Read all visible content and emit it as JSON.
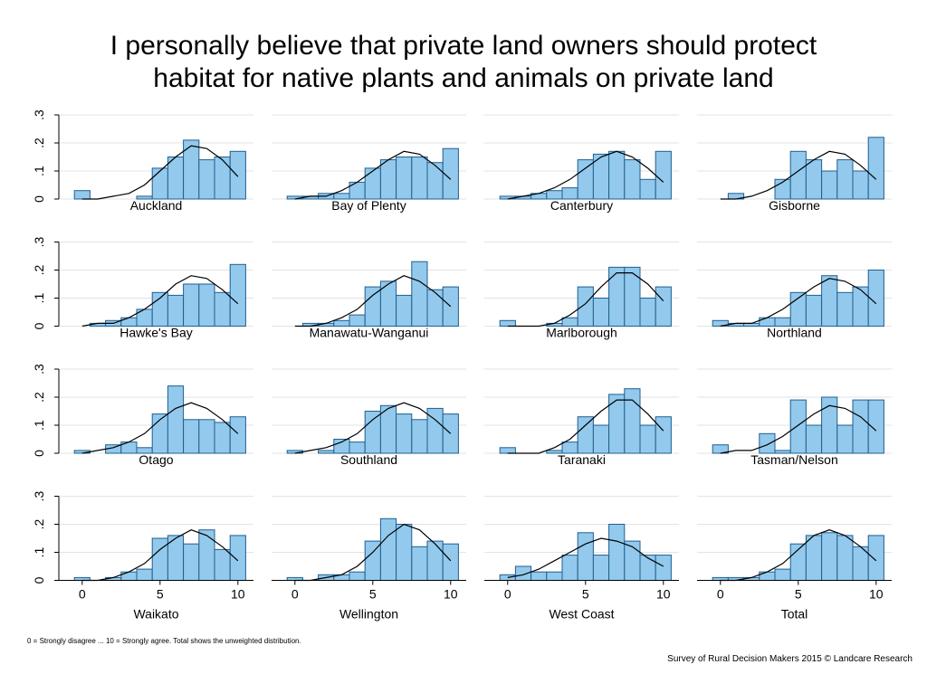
{
  "title": [
    "I personally believe that private land owners should protect",
    "habitat for native plants and animals on private land"
  ],
  "note": "0 = Strongly disagree ... 10 = Strongly agree. Total shows the unweighted distribution.",
  "source": "Survey of Rural Decision Makers 2015 © Landcare Research",
  "axes": {
    "xlim": [
      -1.5,
      11
    ],
    "xticks": [
      0,
      5,
      10
    ],
    "ylim": [
      0,
      0.3
    ],
    "yticks": [
      0,
      {
        "value": 0.1,
        "label": ".1"
      },
      {
        "value": 0.2,
        "label": ".2"
      },
      {
        "value": 0.3,
        "label": ".3"
      }
    ],
    "grid": true,
    "bar_color": "#93c9ec",
    "edge_color": "#1f5f8f",
    "curve_color": "#000000"
  },
  "curve_x": [
    0,
    1,
    2,
    3,
    4,
    5,
    6,
    7,
    8,
    9,
    10
  ],
  "chart_data": [
    {
      "type": "histogram",
      "title": "Auckland",
      "bins": [
        -0.5,
        0.5,
        1.5,
        2.5,
        3.5,
        4.5,
        5.5,
        6.5,
        7.5,
        8.5,
        9.5,
        10.5
      ],
      "values": [
        0.03,
        0,
        0,
        0,
        0.01,
        0.11,
        0.15,
        0.21,
        0.14,
        0.15,
        0.17
      ],
      "curve": [
        0,
        0,
        0.01,
        0.02,
        0.05,
        0.1,
        0.15,
        0.19,
        0.18,
        0.14,
        0.08
      ]
    },
    {
      "type": "histogram",
      "title": "Bay of Plenty",
      "bins": [
        -0.5,
        0.5,
        1.5,
        2.5,
        3.5,
        4.5,
        5.5,
        6.5,
        7.5,
        8.5,
        9.5,
        10.5
      ],
      "values": [
        0.01,
        0.01,
        0.02,
        0.02,
        0.06,
        0.11,
        0.14,
        0.15,
        0.15,
        0.13,
        0.18
      ],
      "curve": [
        0,
        0.01,
        0.01,
        0.03,
        0.06,
        0.1,
        0.14,
        0.17,
        0.16,
        0.12,
        0.07
      ]
    },
    {
      "type": "histogram",
      "title": "Canterbury",
      "bins": [
        -0.5,
        0.5,
        1.5,
        2.5,
        3.5,
        4.5,
        5.5,
        6.5,
        7.5,
        8.5,
        9.5,
        10.5
      ],
      "values": [
        0.01,
        0.01,
        0.02,
        0.03,
        0.04,
        0.14,
        0.16,
        0.17,
        0.14,
        0.07,
        0.17
      ],
      "curve": [
        0,
        0.01,
        0.02,
        0.04,
        0.07,
        0.11,
        0.15,
        0.17,
        0.15,
        0.11,
        0.06
      ]
    },
    {
      "type": "histogram",
      "title": "Gisborne",
      "bins": [
        -0.5,
        0.5,
        1.5,
        2.5,
        3.5,
        4.5,
        5.5,
        6.5,
        7.5,
        8.5,
        9.5,
        10.5
      ],
      "values": [
        0,
        0.02,
        0,
        0,
        0.07,
        0.17,
        0.14,
        0.1,
        0.14,
        0.1,
        0.22
      ],
      "curve": [
        0,
        0,
        0.01,
        0.03,
        0.06,
        0.1,
        0.14,
        0.17,
        0.16,
        0.12,
        0.07
      ]
    },
    {
      "type": "histogram",
      "title": "Hawke's Bay",
      "bins": [
        -0.5,
        0.5,
        1.5,
        2.5,
        3.5,
        4.5,
        5.5,
        6.5,
        7.5,
        8.5,
        9.5,
        10.5
      ],
      "values": [
        0,
        0.01,
        0.02,
        0.03,
        0.06,
        0.12,
        0.11,
        0.15,
        0.15,
        0.12,
        0.22
      ],
      "curve": [
        0,
        0.01,
        0.01,
        0.03,
        0.06,
        0.1,
        0.15,
        0.18,
        0.17,
        0.13,
        0.08
      ]
    },
    {
      "type": "histogram",
      "title": "Manawatu-Wanganui",
      "bins": [
        -0.5,
        0.5,
        1.5,
        2.5,
        3.5,
        4.5,
        5.5,
        6.5,
        7.5,
        8.5,
        9.5,
        10.5
      ],
      "values": [
        0,
        0.01,
        0.01,
        0.02,
        0.04,
        0.14,
        0.16,
        0.11,
        0.23,
        0.13,
        0.14
      ],
      "curve": [
        0,
        0,
        0.01,
        0.03,
        0.06,
        0.11,
        0.15,
        0.18,
        0.16,
        0.12,
        0.07
      ]
    },
    {
      "type": "histogram",
      "title": "Marlborough",
      "bins": [
        -0.5,
        0.5,
        1.5,
        2.5,
        3.5,
        4.5,
        5.5,
        6.5,
        7.5,
        8.5,
        9.5,
        10.5
      ],
      "values": [
        0.02,
        0,
        0,
        0.01,
        0.03,
        0.14,
        0.1,
        0.21,
        0.21,
        0.1,
        0.14
      ],
      "curve": [
        0,
        0,
        0,
        0.01,
        0.04,
        0.08,
        0.14,
        0.19,
        0.19,
        0.15,
        0.09
      ]
    },
    {
      "type": "histogram",
      "title": "Northland",
      "bins": [
        -0.5,
        0.5,
        1.5,
        2.5,
        3.5,
        4.5,
        5.5,
        6.5,
        7.5,
        8.5,
        9.5,
        10.5
      ],
      "values": [
        0.02,
        0.01,
        0.01,
        0.03,
        0.03,
        0.12,
        0.11,
        0.18,
        0.12,
        0.14,
        0.2
      ],
      "curve": [
        0,
        0.01,
        0.01,
        0.03,
        0.06,
        0.1,
        0.14,
        0.17,
        0.16,
        0.13,
        0.08
      ]
    },
    {
      "type": "histogram",
      "title": "Otago",
      "bins": [
        -0.5,
        0.5,
        1.5,
        2.5,
        3.5,
        4.5,
        5.5,
        6.5,
        7.5,
        8.5,
        9.5,
        10.5
      ],
      "values": [
        0.01,
        0,
        0.03,
        0.04,
        0.02,
        0.14,
        0.24,
        0.12,
        0.12,
        0.11,
        0.13
      ],
      "curve": [
        0,
        0.01,
        0.02,
        0.04,
        0.07,
        0.12,
        0.16,
        0.18,
        0.16,
        0.12,
        0.07
      ]
    },
    {
      "type": "histogram",
      "title": "Southland",
      "bins": [
        -0.5,
        0.5,
        1.5,
        2.5,
        3.5,
        4.5,
        5.5,
        6.5,
        7.5,
        8.5,
        9.5,
        10.5
      ],
      "values": [
        0.01,
        0,
        0.01,
        0.05,
        0.04,
        0.15,
        0.17,
        0.14,
        0.12,
        0.16,
        0.14
      ],
      "curve": [
        0,
        0.01,
        0.02,
        0.04,
        0.07,
        0.12,
        0.16,
        0.18,
        0.16,
        0.12,
        0.07
      ]
    },
    {
      "type": "histogram",
      "title": "Taranaki",
      "bins": [
        -0.5,
        0.5,
        1.5,
        2.5,
        3.5,
        4.5,
        5.5,
        6.5,
        7.5,
        8.5,
        9.5,
        10.5
      ],
      "values": [
        0.02,
        0,
        0,
        0.01,
        0.04,
        0.13,
        0.1,
        0.21,
        0.23,
        0.1,
        0.13
      ],
      "curve": [
        0,
        0,
        0,
        0.02,
        0.05,
        0.1,
        0.15,
        0.19,
        0.19,
        0.14,
        0.08
      ]
    },
    {
      "type": "histogram",
      "title": "Tasman/Nelson",
      "bins": [
        -0.5,
        0.5,
        1.5,
        2.5,
        3.5,
        4.5,
        5.5,
        6.5,
        7.5,
        8.5,
        9.5,
        10.5
      ],
      "values": [
        0.03,
        0,
        0,
        0.07,
        0.01,
        0.19,
        0.1,
        0.2,
        0.1,
        0.19,
        0.19
      ],
      "curve": [
        0,
        0.01,
        0.01,
        0.03,
        0.06,
        0.1,
        0.14,
        0.17,
        0.16,
        0.13,
        0.08
      ]
    },
    {
      "type": "histogram",
      "title": "Waikato",
      "bins": [
        -0.5,
        0.5,
        1.5,
        2.5,
        3.5,
        4.5,
        5.5,
        6.5,
        7.5,
        8.5,
        9.5,
        10.5
      ],
      "values": [
        0.01,
        0,
        0.01,
        0.03,
        0.04,
        0.15,
        0.16,
        0.13,
        0.18,
        0.11,
        0.16
      ],
      "curve": [
        0,
        0,
        0.01,
        0.03,
        0.06,
        0.11,
        0.15,
        0.18,
        0.16,
        0.12,
        0.07
      ]
    },
    {
      "type": "histogram",
      "title": "Wellington",
      "bins": [
        -0.5,
        0.5,
        1.5,
        2.5,
        3.5,
        4.5,
        5.5,
        6.5,
        7.5,
        8.5,
        9.5,
        10.5
      ],
      "values": [
        0.01,
        0,
        0.02,
        0.02,
        0.03,
        0.14,
        0.22,
        0.2,
        0.12,
        0.14,
        0.13
      ],
      "curve": [
        0,
        0,
        0.01,
        0.02,
        0.05,
        0.1,
        0.16,
        0.2,
        0.18,
        0.13,
        0.07
      ]
    },
    {
      "type": "histogram",
      "title": "West Coast",
      "bins": [
        -0.5,
        0.5,
        1.5,
        2.5,
        3.5,
        4.5,
        5.5,
        6.5,
        7.5,
        8.5,
        9.5,
        10.5
      ],
      "values": [
        0.02,
        0.05,
        0.03,
        0.03,
        0.09,
        0.17,
        0.09,
        0.2,
        0.14,
        0.09,
        0.09
      ],
      "curve": [
        0.01,
        0.02,
        0.04,
        0.07,
        0.1,
        0.13,
        0.15,
        0.14,
        0.12,
        0.08,
        0.05
      ]
    },
    {
      "type": "histogram",
      "title": "Total",
      "bins": [
        -0.5,
        0.5,
        1.5,
        2.5,
        3.5,
        4.5,
        5.5,
        6.5,
        7.5,
        8.5,
        9.5,
        10.5
      ],
      "values": [
        0.01,
        0.01,
        0.01,
        0.03,
        0.04,
        0.13,
        0.16,
        0.17,
        0.16,
        0.12,
        0.16
      ],
      "curve": [
        0,
        0,
        0.01,
        0.03,
        0.06,
        0.11,
        0.16,
        0.18,
        0.16,
        0.12,
        0.07
      ]
    }
  ]
}
